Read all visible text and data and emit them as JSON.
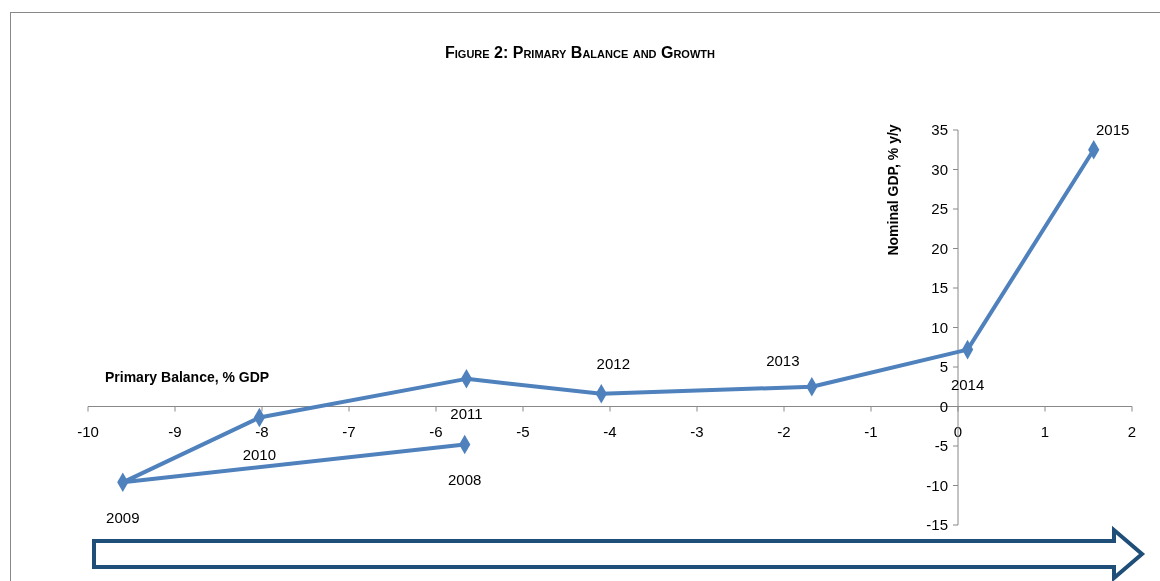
{
  "chart_data": {
    "type": "line",
    "title": "Figure 2: Primary Balance and Growth",
    "xlabel": "Primary Balance, % GDP",
    "ylabel": "Nominal GDP, % y/y",
    "series": [
      {
        "color": "#4f81bd",
        "x": [
          -5.67,
          -9.6,
          -8.03,
          -5.65,
          -4.1,
          -1.68,
          0.11,
          1.56
        ],
        "values": [
          -4.8,
          -9.6,
          -1.4,
          3.5,
          1.6,
          2.5,
          7.2,
          32.5
        ]
      }
    ],
    "xlim": [
      -10,
      2
    ],
    "xticks": [
      -10,
      -9,
      -8,
      -7,
      -6,
      -5,
      -4,
      -3,
      -2,
      -1,
      0,
      1,
      2
    ],
    "ylim": [
      -15,
      35
    ],
    "yticks": [
      -15,
      -10,
      -5,
      0,
      5,
      10,
      15,
      20,
      25,
      30,
      35
    ],
    "marker": "diamond",
    "line_style": "solid",
    "grid": false,
    "annotations": [
      {
        "text": "2008",
        "x": -5.67,
        "y": -4.8
      },
      {
        "text": "2009",
        "x": -9.6,
        "y": -9.6
      },
      {
        "text": "2010",
        "x": -8.03,
        "y": -1.4
      },
      {
        "text": "2011",
        "x": -5.65,
        "y": 3.5
      },
      {
        "text": "2012",
        "x": -4.1,
        "y": 1.6
      },
      {
        "text": "2013",
        "x": -1.68,
        "y": 2.5
      },
      {
        "text": "2014",
        "x": 0.11,
        "y": 7.2
      },
      {
        "text": "2015",
        "x": 1.56,
        "y": 32.5
      }
    ]
  }
}
